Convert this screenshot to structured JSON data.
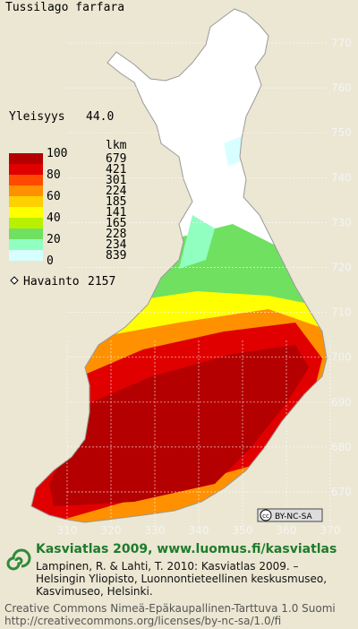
{
  "title": "Tussilago farfara",
  "frequency": {
    "label": "Yleisyys",
    "value": "44.0"
  },
  "legend": {
    "scale_labels": [
      "100",
      "80",
      "60",
      "40",
      "20",
      "0"
    ],
    "count_header": "lkm",
    "counts": [
      679,
      421,
      301,
      224,
      185,
      141,
      165,
      228,
      234,
      839
    ],
    "colors": [
      "#b40000",
      "#e00000",
      "#ff4a00",
      "#ff9000",
      "#ffd000",
      "#ffff00",
      "#b8f000",
      "#70e060",
      "#90ffc0",
      "#d8ffff"
    ]
  },
  "observations": {
    "label": "Havainto",
    "count": 2157
  },
  "y_axis_labels": [
    "770",
    "760",
    "750",
    "740",
    "730",
    "720",
    "710",
    "700",
    "690",
    "680",
    "670"
  ],
  "x_axis_labels": [
    "310",
    "320",
    "330",
    "340",
    "350",
    "360",
    "370"
  ],
  "license_badge": {
    "cc": "cc",
    "text": "BY-NC-SA"
  },
  "footer": {
    "heading": "Kasviatlas 2009, www.luomus.fi/kasviatlas",
    "citation": [
      "Lampinen, R. & Lahti, T. 2010: Kasviatlas 2009. –",
      "Helsingin Yliopisto, Luonnontieteellinen keskusmuseo,",
      "Kasvimuseo, Helsinki."
    ],
    "license": [
      "Creative Commons Nimeä-Epäkaupallinen-Tarttuva 1.0 Suomi",
      "http://creativecommons.org/licenses/by-nc-sa/1.0/fi"
    ]
  }
}
